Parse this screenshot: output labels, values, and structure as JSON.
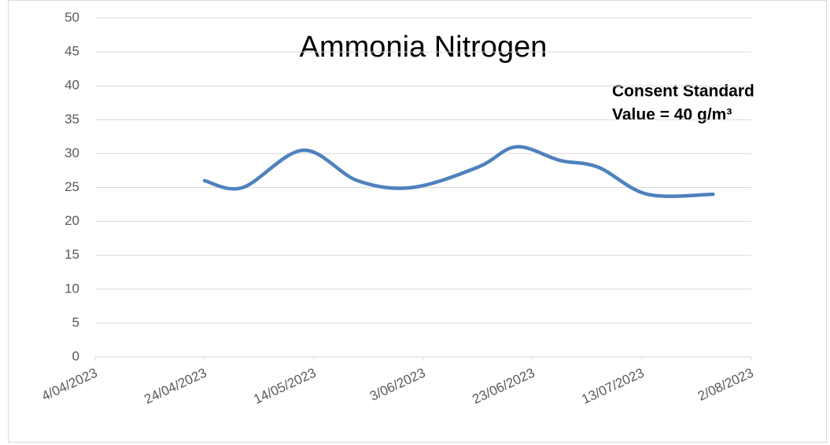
{
  "chart_data": {
    "type": "line",
    "title": "Ammonia Nitrogen",
    "annotation": [
      "Consent Standard",
      "Value = 40 g/m³"
    ],
    "x": [
      "24/04/2023",
      "1/05/2023",
      "12/05/2023",
      "22/05/2023",
      "1/06/2023",
      "13/06/2023",
      "20/06/2023",
      "28/06/2023",
      "5/07/2023",
      "14/07/2023",
      "26/07/2023"
    ],
    "series": [
      {
        "name": "Ammonia Nitrogen",
        "color": "#4f81bd",
        "values": [
          26,
          25,
          30.5,
          26,
          25,
          28,
          31,
          29,
          28,
          24,
          24
        ]
      }
    ],
    "xlim": [
      "4/04/2023",
      "2/08/2023"
    ],
    "xticks": [
      "4/04/2023",
      "24/04/2023",
      "14/05/2023",
      "3/06/2023",
      "23/06/2023",
      "13/07/2023",
      "2/08/2023"
    ],
    "ylim": [
      0,
      50
    ],
    "yticks": [
      0,
      5,
      10,
      15,
      20,
      25,
      30,
      35,
      40,
      45,
      50
    ],
    "grid": true,
    "smooth": true
  }
}
